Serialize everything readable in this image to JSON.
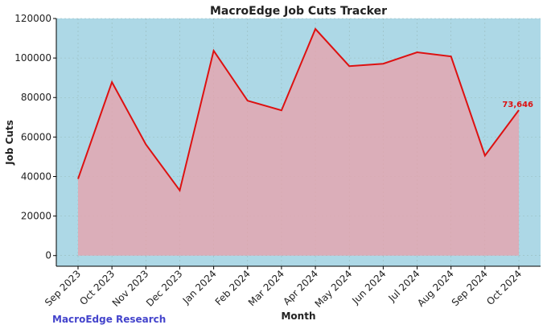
{
  "chart_data": {
    "type": "line",
    "title": "MacroEdge Job Cuts Tracker",
    "x_label": "Month",
    "y_label": "Job Cuts",
    "source": "MacroEdge Research",
    "categories": [
      "Sep 2023",
      "Oct 2023",
      "Nov 2023",
      "Dec 2023",
      "Jan 2024",
      "Feb 2024",
      "Mar 2024",
      "Apr 2024",
      "May 2024",
      "Jun 2024",
      "Jul 2024",
      "Aug 2024",
      "Sep 2024",
      "Oct 2024"
    ],
    "series": [
      {
        "name": "Job Cuts",
        "color": "#dd1111",
        "fill": "rgba(235,160,170,0.75)",
        "values": [
          38800,
          87800,
          56300,
          33000,
          103700,
          78400,
          73500,
          114700,
          95900,
          97100,
          102900,
          100800,
          50600,
          73646
        ],
        "value_labels": [
          null,
          null,
          null,
          null,
          null,
          null,
          null,
          null,
          null,
          null,
          null,
          null,
          null,
          "73,646"
        ]
      }
    ],
    "ylim": [
      -5400,
      120000
    ],
    "yticks": [
      0,
      20000,
      40000,
      60000,
      80000,
      100000,
      120000
    ],
    "grid": true,
    "background": "#add8e6"
  }
}
